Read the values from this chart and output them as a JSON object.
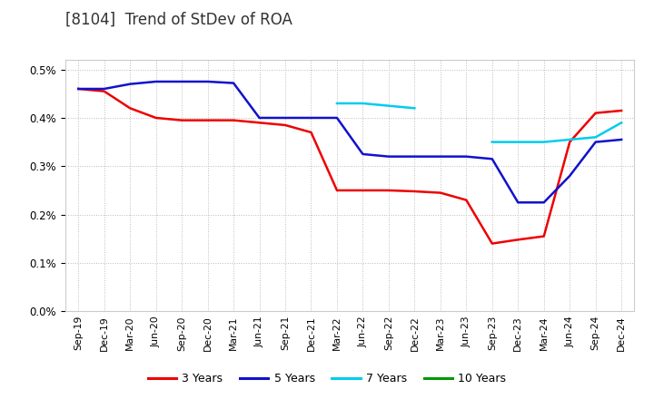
{
  "title": "[8104]  Trend of StDev of ROA",
  "title_fontsize": 12,
  "background_color": "#ffffff",
  "plot_bg_color": "#ffffff",
  "grid_color": "#bbbbbb",
  "legend_labels": [
    "3 Years",
    "5 Years",
    "7 Years",
    "10 Years"
  ],
  "legend_colors": [
    "#ee0000",
    "#1111cc",
    "#00ccee",
    "#009900"
  ],
  "x_labels": [
    "Sep-19",
    "Dec-19",
    "Mar-20",
    "Jun-20",
    "Sep-20",
    "Dec-20",
    "Mar-21",
    "Jun-21",
    "Sep-21",
    "Dec-21",
    "Mar-22",
    "Jun-22",
    "Sep-22",
    "Dec-22",
    "Mar-23",
    "Jun-23",
    "Sep-23",
    "Dec-23",
    "Mar-24",
    "Jun-24",
    "Sep-24",
    "Dec-24"
  ],
  "series_3y": [
    0.0046,
    0.00455,
    0.0042,
    0.004,
    0.00395,
    0.00395,
    0.00395,
    0.0039,
    0.00385,
    0.0037,
    0.0025,
    0.0025,
    0.0025,
    0.00248,
    0.00245,
    0.0023,
    0.0014,
    0.00148,
    0.00155,
    0.0035,
    0.0041,
    0.00415
  ],
  "series_5y": [
    0.0046,
    0.0046,
    0.0047,
    0.00475,
    0.00475,
    0.00475,
    0.00472,
    0.004,
    0.004,
    0.004,
    0.004,
    0.00325,
    0.0032,
    0.0032,
    0.0032,
    0.0032,
    0.00315,
    0.00225,
    0.00225,
    0.0028,
    0.0035,
    0.00355
  ],
  "series_7y": [
    null,
    null,
    null,
    null,
    null,
    null,
    null,
    null,
    null,
    null,
    0.0043,
    0.0043,
    0.00425,
    0.0042,
    null,
    null,
    0.0035,
    0.0035,
    0.0035,
    0.00355,
    0.0036,
    0.0039
  ],
  "series_10y": [
    null,
    null,
    null,
    null,
    null,
    null,
    null,
    null,
    null,
    null,
    null,
    null,
    null,
    null,
    null,
    null,
    null,
    null,
    null,
    null,
    null,
    null
  ],
  "ylim_min": 0.0,
  "ylim_max": 0.0052,
  "yticks": [
    0.0,
    0.001,
    0.002,
    0.003,
    0.004,
    0.005
  ]
}
